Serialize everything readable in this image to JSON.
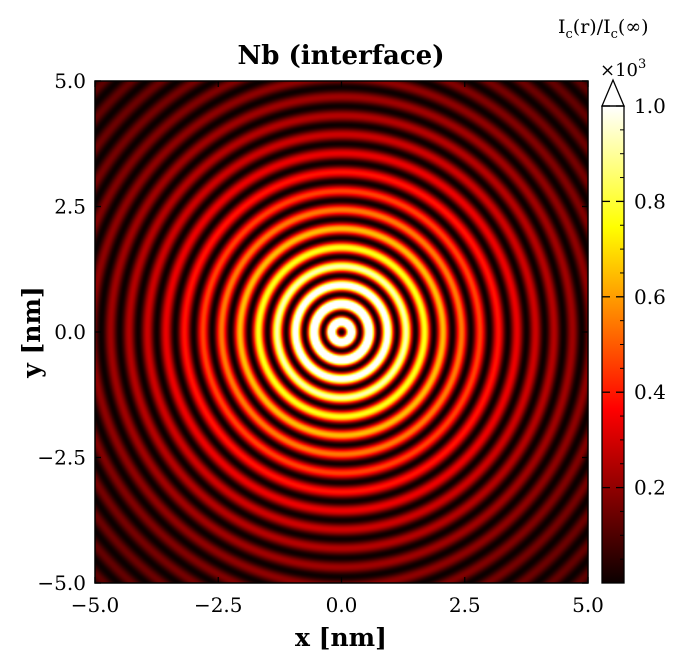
{
  "chart_data": {
    "type": "heatmap",
    "title": "Nb (interface)",
    "xlabel": "x [nm]",
    "ylabel": "y [nm]",
    "xlim": [
      -5.0,
      5.0
    ],
    "ylim": [
      -5.0,
      5.0
    ],
    "x_ticks": [
      "−5.0",
      "−2.5",
      "0.0",
      "2.5",
      "5.0"
    ],
    "y_ticks": [
      "5.0",
      "2.5",
      "0.0",
      "−2.5",
      "−5.0"
    ],
    "colormap": "hot",
    "colorbar": {
      "title_main": "I",
      "title_sub": "c",
      "title_rest1": "(r)/I",
      "title_rest2": "(∞)",
      "multiplier": "×10",
      "multiplier_exp": "3",
      "ticks": [
        "0.2",
        "0.4",
        "0.6",
        "0.8",
        "1.0"
      ],
      "tick_values": [
        0.2,
        0.4,
        0.6,
        0.8,
        1.0
      ],
      "range": [
        0.0,
        1.0
      ],
      "extend": "max"
    },
    "pattern": {
      "description_values": {
        "center": [
          0.0,
          0.0
        ],
        "ring_radii_nm": [
          0.38,
          0.75,
          1.12,
          1.5,
          1.88,
          2.25,
          2.62,
          3.0,
          3.38,
          3.75,
          4.12,
          4.5,
          4.88,
          5.25,
          5.62,
          6.0,
          6.38,
          6.75,
          7.12
        ],
        "ring_period_nm": 0.375,
        "peak_intensity": 1.0,
        "decay_scale_nm": 1.9
      }
    },
    "grid": false
  }
}
